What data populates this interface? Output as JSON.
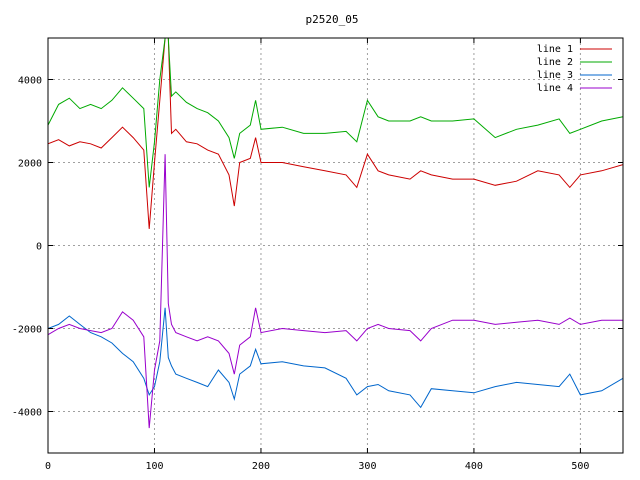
{
  "chart_data": {
    "type": "line",
    "title": "p2520_05",
    "xlabel": "",
    "ylabel": "",
    "xlim": [
      0,
      540
    ],
    "ylim": [
      -5000,
      5000
    ],
    "xticks": [
      0,
      100,
      200,
      300,
      400,
      500
    ],
    "yticks": [
      -4000,
      -2000,
      0,
      2000,
      4000
    ],
    "grid": true,
    "legend_position": "top-right",
    "series": [
      {
        "name": "line 1",
        "color": "#cc0000",
        "x": [
          0,
          10,
          20,
          30,
          40,
          50,
          60,
          70,
          80,
          90,
          95,
          100,
          105,
          110,
          113,
          116,
          120,
          130,
          140,
          150,
          160,
          170,
          175,
          180,
          190,
          195,
          200,
          220,
          240,
          260,
          280,
          290,
          300,
          310,
          320,
          340,
          350,
          360,
          380,
          400,
          420,
          440,
          460,
          480,
          490,
          500,
          520,
          540
        ],
        "y": [
          2450,
          2550,
          2400,
          2500,
          2450,
          2350,
          2600,
          2850,
          2600,
          2300,
          400,
          2000,
          3500,
          5000,
          5000,
          2700,
          2800,
          2500,
          2450,
          2300,
          2200,
          1700,
          950,
          2000,
          2100,
          2600,
          2000,
          2000,
          1900,
          1800,
          1700,
          1400,
          2200,
          1800,
          1700,
          1600,
          1800,
          1700,
          1600,
          1600,
          1450,
          1550,
          1800,
          1700,
          1400,
          1700,
          1800,
          1950
        ]
      },
      {
        "name": "line 2",
        "color": "#00aa00",
        "x": [
          0,
          10,
          20,
          30,
          40,
          50,
          60,
          70,
          80,
          90,
          95,
          100,
          105,
          110,
          113,
          116,
          120,
          130,
          140,
          150,
          160,
          170,
          175,
          180,
          190,
          195,
          200,
          220,
          240,
          260,
          280,
          290,
          300,
          310,
          320,
          340,
          350,
          360,
          380,
          400,
          420,
          440,
          460,
          480,
          490,
          500,
          520,
          540
        ],
        "y": [
          2900,
          3400,
          3550,
          3300,
          3400,
          3300,
          3500,
          3800,
          3550,
          3300,
          1400,
          2500,
          4000,
          5000,
          5000,
          3600,
          3700,
          3450,
          3300,
          3200,
          3000,
          2600,
          2100,
          2700,
          2900,
          3500,
          2800,
          2850,
          2700,
          2700,
          2750,
          2500,
          3500,
          3100,
          3000,
          3000,
          3100,
          3000,
          3000,
          3050,
          2600,
          2800,
          2900,
          3050,
          2700,
          2800,
          3000,
          3100
        ]
      },
      {
        "name": "line 3",
        "color": "#0066cc",
        "x": [
          0,
          10,
          20,
          30,
          40,
          50,
          60,
          70,
          80,
          90,
          95,
          100,
          105,
          110,
          113,
          116,
          120,
          130,
          140,
          150,
          160,
          170,
          175,
          180,
          190,
          195,
          200,
          220,
          240,
          260,
          280,
          290,
          300,
          310,
          320,
          340,
          350,
          360,
          380,
          400,
          420,
          440,
          460,
          480,
          490,
          500,
          520,
          540
        ],
        "y": [
          -2000,
          -1900,
          -1700,
          -1900,
          -2100,
          -2200,
          -2350,
          -2600,
          -2800,
          -3200,
          -3600,
          -3400,
          -2800,
          -1500,
          -2700,
          -2900,
          -3100,
          -3200,
          -3300,
          -3400,
          -3000,
          -3300,
          -3700,
          -3100,
          -2900,
          -2500,
          -2850,
          -2800,
          -2900,
          -2950,
          -3200,
          -3600,
          -3400,
          -3350,
          -3500,
          -3600,
          -3900,
          -3450,
          -3500,
          -3550,
          -3400,
          -3300,
          -3350,
          -3400,
          -3100,
          -3600,
          -3500,
          -3200
        ]
      },
      {
        "name": "line 4",
        "color": "#9900cc",
        "x": [
          0,
          10,
          20,
          30,
          40,
          50,
          60,
          70,
          80,
          90,
          95,
          100,
          105,
          110,
          113,
          116,
          120,
          130,
          140,
          150,
          160,
          170,
          175,
          180,
          190,
          195,
          200,
          220,
          240,
          260,
          280,
          290,
          300,
          310,
          320,
          340,
          350,
          360,
          380,
          400,
          420,
          440,
          460,
          480,
          490,
          500,
          520,
          540
        ],
        "y": [
          -2150,
          -2000,
          -1900,
          -2000,
          -2050,
          -2100,
          -2000,
          -1600,
          -1800,
          -2200,
          -4400,
          -3000,
          -2300,
          2200,
          -1400,
          -1900,
          -2100,
          -2200,
          -2300,
          -2200,
          -2300,
          -2600,
          -3100,
          -2400,
          -2200,
          -1500,
          -2100,
          -2000,
          -2050,
          -2100,
          -2050,
          -2300,
          -2000,
          -1900,
          -2000,
          -2050,
          -2300,
          -2000,
          -1800,
          -1800,
          -1900,
          -1850,
          -1800,
          -1900,
          -1750,
          -1900,
          -1800,
          -1800
        ]
      }
    ]
  }
}
